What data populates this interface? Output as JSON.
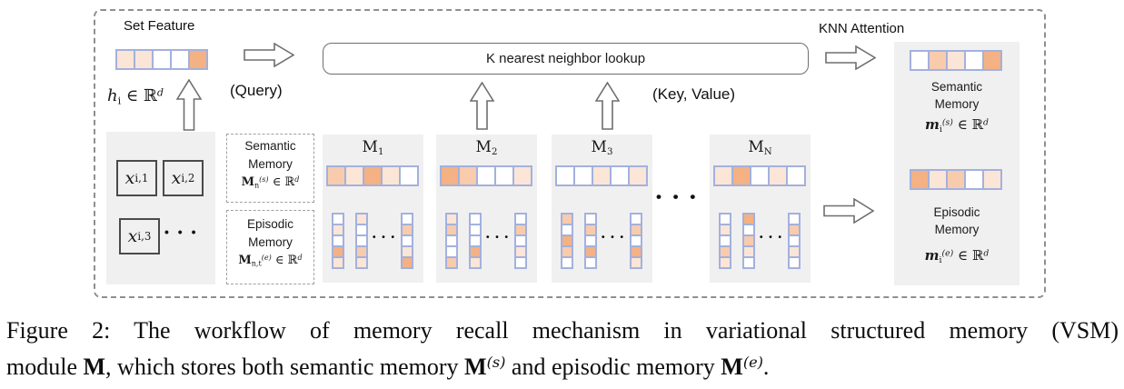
{
  "palette": {
    "w": "#ffffff",
    "p1": "#fbe5d6",
    "p2": "#f8cbad",
    "p3": "#f4b183"
  },
  "diagram": {
    "set_feature": {
      "label": "Set Feature",
      "cells": [
        "p1",
        "p1",
        "w",
        "w",
        "p3"
      ],
      "math": {
        "var": "h",
        "sub": "i",
        "mid": "∈ ℝ",
        "dim": "d"
      }
    },
    "query_label": "(Query)",
    "key_value_label": "(Key, Value)",
    "knn_box_label": "K nearest neighbor lookup",
    "knn_attention_label": "KNN Attention",
    "input_set": {
      "items": [
        {
          "base": "x",
          "sub": "i,1"
        },
        {
          "base": "x",
          "sub": "i,2"
        },
        {
          "base": "x",
          "sub": "i,3"
        }
      ],
      "ellipsis": "• • •"
    },
    "semantic_mem_label": {
      "line1": "Semantic",
      "line2": "Memory",
      "math": {
        "var": "M",
        "sub": "n",
        "sup": "(s)",
        "mid": "∈ ℝ",
        "dim": "d"
      }
    },
    "episodic_mem_label": {
      "line1": "Episodic",
      "line2": "Memory",
      "math": {
        "var": "M",
        "sub": "n,t",
        "sup": "(e)",
        "mid": "∈ ℝ",
        "dim": "d"
      }
    },
    "col_dots": "• • •",
    "block_dots": "• • •",
    "memory_blocks": [
      {
        "title": {
          "base": "M",
          "sub": "1"
        },
        "row": [
          "p2",
          "p1",
          "p3",
          "p1",
          "w"
        ],
        "cols": [
          [
            "w",
            "p1",
            "w",
            "p3",
            "p1"
          ],
          [
            "p1",
            "w",
            "w",
            "p2",
            "p1"
          ],
          [
            "w",
            "p2",
            "w",
            "p1",
            "p3"
          ]
        ]
      },
      {
        "title": {
          "base": "M",
          "sub": "2"
        },
        "row": [
          "p3",
          "p2",
          "w",
          "w",
          "p1"
        ],
        "cols": [
          [
            "p1",
            "p2",
            "w",
            "w",
            "p2"
          ],
          [
            "w",
            "w",
            "w",
            "p3",
            "p1"
          ],
          [
            "w",
            "p2",
            "w",
            "p1",
            "w"
          ]
        ]
      },
      {
        "title": {
          "base": "M",
          "sub": "3"
        },
        "row": [
          "w",
          "w",
          "p1",
          "w",
          "p1"
        ],
        "cols": [
          [
            "p2",
            "w",
            "p3",
            "p2",
            "w"
          ],
          [
            "w",
            "p2",
            "w",
            "p3",
            "w"
          ],
          [
            "w",
            "p2",
            "w",
            "p3",
            "p1"
          ]
        ]
      },
      {
        "title": {
          "base": "M",
          "sub": "N"
        },
        "row": [
          "p1",
          "p3",
          "w",
          "p1",
          "w"
        ],
        "cols": [
          [
            "w",
            "p1",
            "w",
            "p2",
            "p1"
          ],
          [
            "p3",
            "w",
            "p2",
            "p1",
            "w"
          ],
          [
            "w",
            "p2",
            "w",
            "p1",
            "w"
          ]
        ]
      }
    ],
    "outputs": {
      "semantic": {
        "cells": [
          "w",
          "p2",
          "p1",
          "w",
          "p3"
        ],
        "line1": "Semantic",
        "line2": "Memory",
        "math": {
          "var": "m",
          "sub": "i",
          "sup": "(s)",
          "mid": "∈ ℝ",
          "dim": "d"
        }
      },
      "episodic": {
        "cells": [
          "p3",
          "p1",
          "p2",
          "w",
          "p1"
        ],
        "line1": "Episodic",
        "line2": "Memory",
        "math": {
          "var": "m",
          "sub": "i",
          "sup": "(e)",
          "mid": "∈ ℝ",
          "dim": "d"
        }
      }
    }
  },
  "caption": {
    "line1": "Figure 2: The workflow of memory recall mechanism in variational structured memory (VSM)",
    "line2": {
      "p1": "module ",
      "m1": "M",
      "p2": ", which stores both semantic memory ",
      "m2": "M",
      "sup2": "(s)",
      "p3": " and episodic memory ",
      "m3": "M",
      "sup3": "(e)",
      "p4": "."
    }
  }
}
